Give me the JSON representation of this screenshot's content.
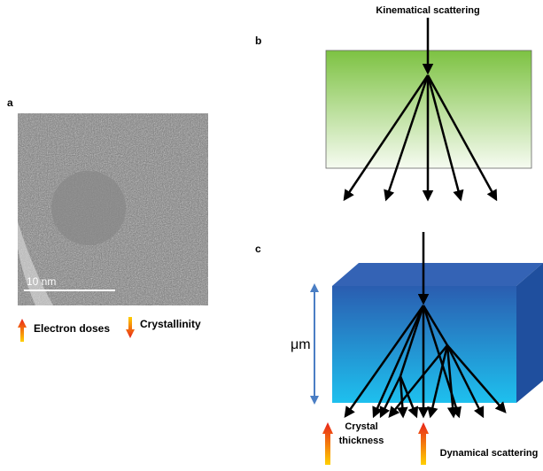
{
  "panel_a": {
    "label": "a",
    "scale_bar": "10 nm",
    "increase": "Electron doses",
    "decrease": "Crystallinity"
  },
  "panel_b": {
    "label": "b",
    "title": "Kinematical scattering"
  },
  "panel_c": {
    "label": "c",
    "dimension": "μm",
    "increase_1": [
      "Crystal",
      "thickness"
    ],
    "increase_2": "Dynamical scattering"
  }
}
